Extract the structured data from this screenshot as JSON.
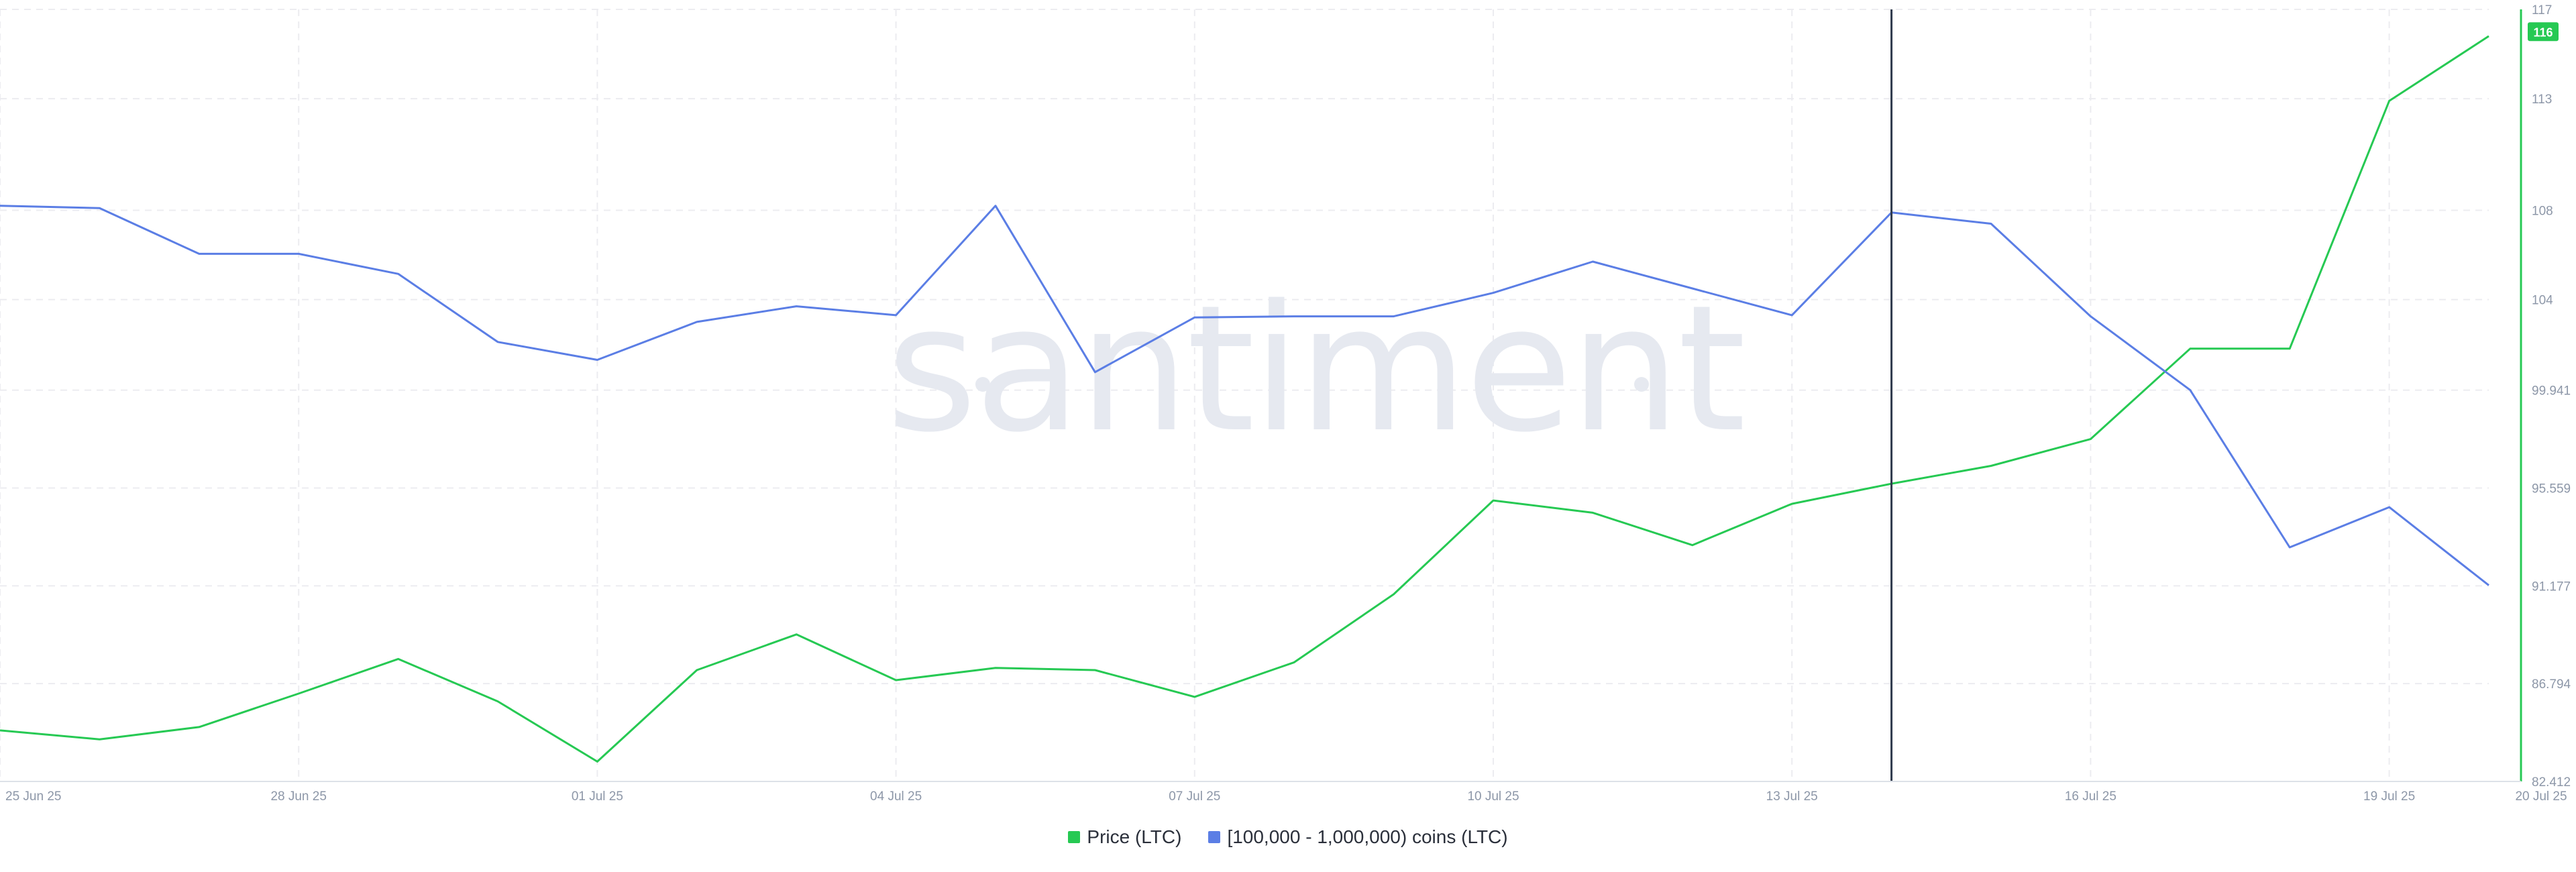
{
  "chart_data": {
    "type": "line",
    "watermark": "santiment",
    "x": [
      "25 Jun 25",
      "26 Jun 25",
      "27 Jun 25",
      "28 Jun 25",
      "29 Jun 25",
      "30 Jun 25",
      "01 Jul 25",
      "02 Jul 25",
      "03 Jul 25",
      "04 Jul 25",
      "05 Jul 25",
      "06 Jul 25",
      "07 Jul 25",
      "08 Jul 25",
      "09 Jul 25",
      "10 Jul 25",
      "11 Jul 25",
      "12 Jul 25",
      "13 Jul 25",
      "14 Jul 25",
      "15 Jul 25",
      "16 Jul 25",
      "17 Jul 25",
      "18 Jul 25",
      "19 Jul 25",
      "20 Jul 25"
    ],
    "x_tick_labels": [
      "25 Jun 25",
      "28 Jun 25",
      "01 Jul 25",
      "04 Jul 25",
      "07 Jul 25",
      "10 Jul 25",
      "13 Jul 25",
      "16 Jul 25",
      "19 Jul 25",
      "20 Jul 25"
    ],
    "y_axis": {
      "ticks": [
        "82.412",
        "86.794",
        "91.177",
        "95.559",
        "99.941",
        "104",
        "108",
        "113",
        "117"
      ],
      "ylim": [
        82.412,
        117
      ],
      "current_value_badge": "116",
      "badge_color": "#26c953"
    },
    "series": [
      {
        "name": "Price (LTC)",
        "color": "#26c953",
        "values": [
          84.7,
          84.3,
          84.85,
          86.35,
          87.9,
          86.0,
          83.3,
          87.4,
          89.0,
          86.95,
          87.5,
          87.4,
          86.2,
          87.75,
          90.8,
          95.0,
          94.45,
          93.0,
          94.85,
          95.75,
          96.55,
          97.75,
          101.8,
          101.8,
          112.9,
          115.8
        ]
      },
      {
        "name": "[100,000  - 1,000,000) coins (LTC)",
        "color": "#5b7ee5",
        "values": [
          108.2,
          108.1,
          106.05,
          106.05,
          105.15,
          102.1,
          101.3,
          103.0,
          103.7,
          103.3,
          108.2,
          100.75,
          103.2,
          103.25,
          103.25,
          104.3,
          105.7,
          104.5,
          103.3,
          107.9,
          107.4,
          103.25,
          99.95,
          92.9,
          94.7,
          91.2
        ]
      }
    ],
    "crosshair_x": "14 Jul 25",
    "grid": true,
    "legend_position": "bottom-center"
  }
}
